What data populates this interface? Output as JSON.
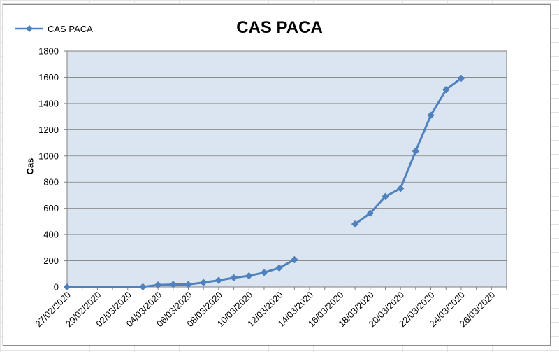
{
  "chart_data": {
    "type": "line",
    "title": "CAS PACA",
    "xlabel": "",
    "ylabel": "Cas",
    "ylim": [
      0,
      1800
    ],
    "yticks": [
      0,
      200,
      400,
      600,
      800,
      1000,
      1200,
      1400,
      1600,
      1800
    ],
    "xlim": [
      "2020-02-27",
      "2020-03-27"
    ],
    "xtick_labels": [
      "27/02/2020",
      "29/02/2020",
      "02/03/2020",
      "04/03/2020",
      "06/03/2020",
      "08/03/2020",
      "10/03/2020",
      "12/03/2020",
      "14/03/2020",
      "16/03/2020",
      "18/03/2020",
      "20/03/2020",
      "22/03/2020",
      "24/03/2020",
      "26/03/2020"
    ],
    "grid": true,
    "legend_position": "top-left",
    "plot_background": "#dbe5f1",
    "line_color": "#4f81bd",
    "series": [
      {
        "name": "CAS PACA",
        "points": [
          {
            "date": "2020-02-27",
            "y": 0
          },
          {
            "date": "2020-03-03",
            "y": 1
          },
          {
            "date": "2020-03-04",
            "y": 15
          },
          {
            "date": "2020-03-05",
            "y": 19
          },
          {
            "date": "2020-03-06",
            "y": 19
          },
          {
            "date": "2020-03-07",
            "y": 34
          },
          {
            "date": "2020-03-08",
            "y": 50
          },
          {
            "date": "2020-03-09",
            "y": 70
          },
          {
            "date": "2020-03-10",
            "y": 85
          },
          {
            "date": "2020-03-11",
            "y": 110
          },
          {
            "date": "2020-03-12",
            "y": 145
          },
          {
            "date": "2020-03-13",
            "y": 208
          },
          {
            "date": null,
            "y": null
          },
          {
            "date": "2020-03-17",
            "y": 480
          },
          {
            "date": "2020-03-18",
            "y": 563
          },
          {
            "date": "2020-03-19",
            "y": 690
          },
          {
            "date": "2020-03-20",
            "y": 752
          },
          {
            "date": "2020-03-21",
            "y": 1037
          },
          {
            "date": "2020-03-22",
            "y": 1310
          },
          {
            "date": "2020-03-23",
            "y": 1505
          },
          {
            "date": "2020-03-24",
            "y": 1592
          }
        ]
      }
    ]
  }
}
